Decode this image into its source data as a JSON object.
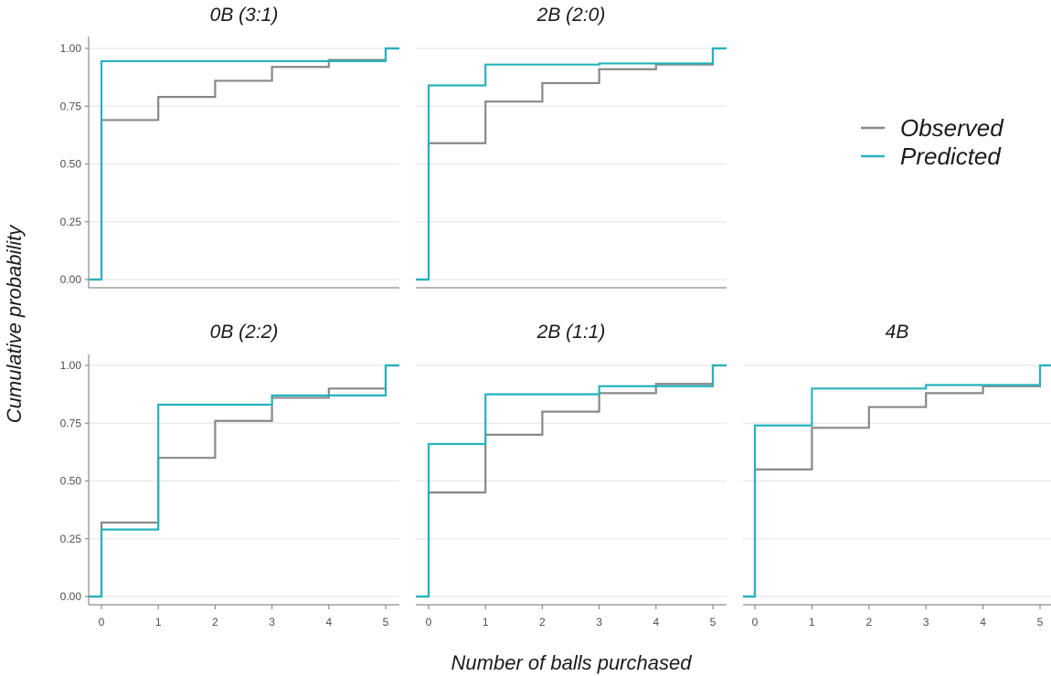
{
  "chart_data": {
    "type": "line",
    "subtype": "step",
    "xlabel": "Number of balls purchased",
    "ylabel": "Cumulative probability",
    "xlim": [
      0,
      5
    ],
    "ylim": [
      0,
      1
    ],
    "x_ticks": [
      0,
      1,
      2,
      3,
      4,
      5
    ],
    "y_ticks": [
      "0.00",
      "0.25",
      "0.50",
      "0.75",
      "1.00"
    ],
    "legend": {
      "position": "right",
      "entries": [
        {
          "name": "Observed",
          "color": "#888888"
        },
        {
          "name": "Predicted",
          "color": "#26b3be"
        }
      ]
    },
    "panels": [
      {
        "title": "0B  (3:1)",
        "series": [
          {
            "name": "Observed",
            "x": [
              0,
              1,
              2,
              3,
              4,
              5
            ],
            "y": [
              0.69,
              0.79,
              0.86,
              0.92,
              0.95,
              1.0
            ]
          },
          {
            "name": "Predicted",
            "x": [
              0,
              1,
              2,
              3,
              4,
              5
            ],
            "y": [
              0.945,
              0.945,
              0.945,
              0.945,
              0.945,
              1.0
            ]
          }
        ]
      },
      {
        "title": "2B  (2:0)",
        "series": [
          {
            "name": "Observed",
            "x": [
              0,
              1,
              2,
              3,
              4,
              5
            ],
            "y": [
              0.59,
              0.77,
              0.85,
              0.91,
              0.93,
              1.0
            ]
          },
          {
            "name": "Predicted",
            "x": [
              0,
              1,
              2,
              3,
              4,
              5
            ],
            "y": [
              0.84,
              0.93,
              0.93,
              0.935,
              0.935,
              1.0
            ]
          }
        ]
      },
      {
        "title": "0B  (2:2)",
        "series": [
          {
            "name": "Observed",
            "x": [
              0,
              1,
              2,
              3,
              4,
              5
            ],
            "y": [
              0.32,
              0.6,
              0.76,
              0.86,
              0.9,
              1.0
            ]
          },
          {
            "name": "Predicted",
            "x": [
              0,
              1,
              2,
              3,
              4,
              5
            ],
            "y": [
              0.29,
              0.83,
              0.83,
              0.87,
              0.87,
              1.0
            ]
          }
        ]
      },
      {
        "title": "2B  (1:1)",
        "series": [
          {
            "name": "Observed",
            "x": [
              0,
              1,
              2,
              3,
              4,
              5
            ],
            "y": [
              0.45,
              0.7,
              0.8,
              0.88,
              0.92,
              1.0
            ]
          },
          {
            "name": "Predicted",
            "x": [
              0,
              1,
              2,
              3,
              4,
              5
            ],
            "y": [
              0.66,
              0.875,
              0.875,
              0.91,
              0.91,
              1.0
            ]
          }
        ]
      },
      {
        "title": "4B",
        "series": [
          {
            "name": "Observed",
            "x": [
              0,
              1,
              2,
              3,
              4,
              5
            ],
            "y": [
              0.55,
              0.73,
              0.82,
              0.88,
              0.91,
              1.0
            ]
          },
          {
            "name": "Predicted",
            "x": [
              0,
              1,
              2,
              3,
              4,
              5
            ],
            "y": [
              0.74,
              0.9,
              0.9,
              0.915,
              0.915,
              1.0
            ]
          }
        ]
      }
    ]
  }
}
